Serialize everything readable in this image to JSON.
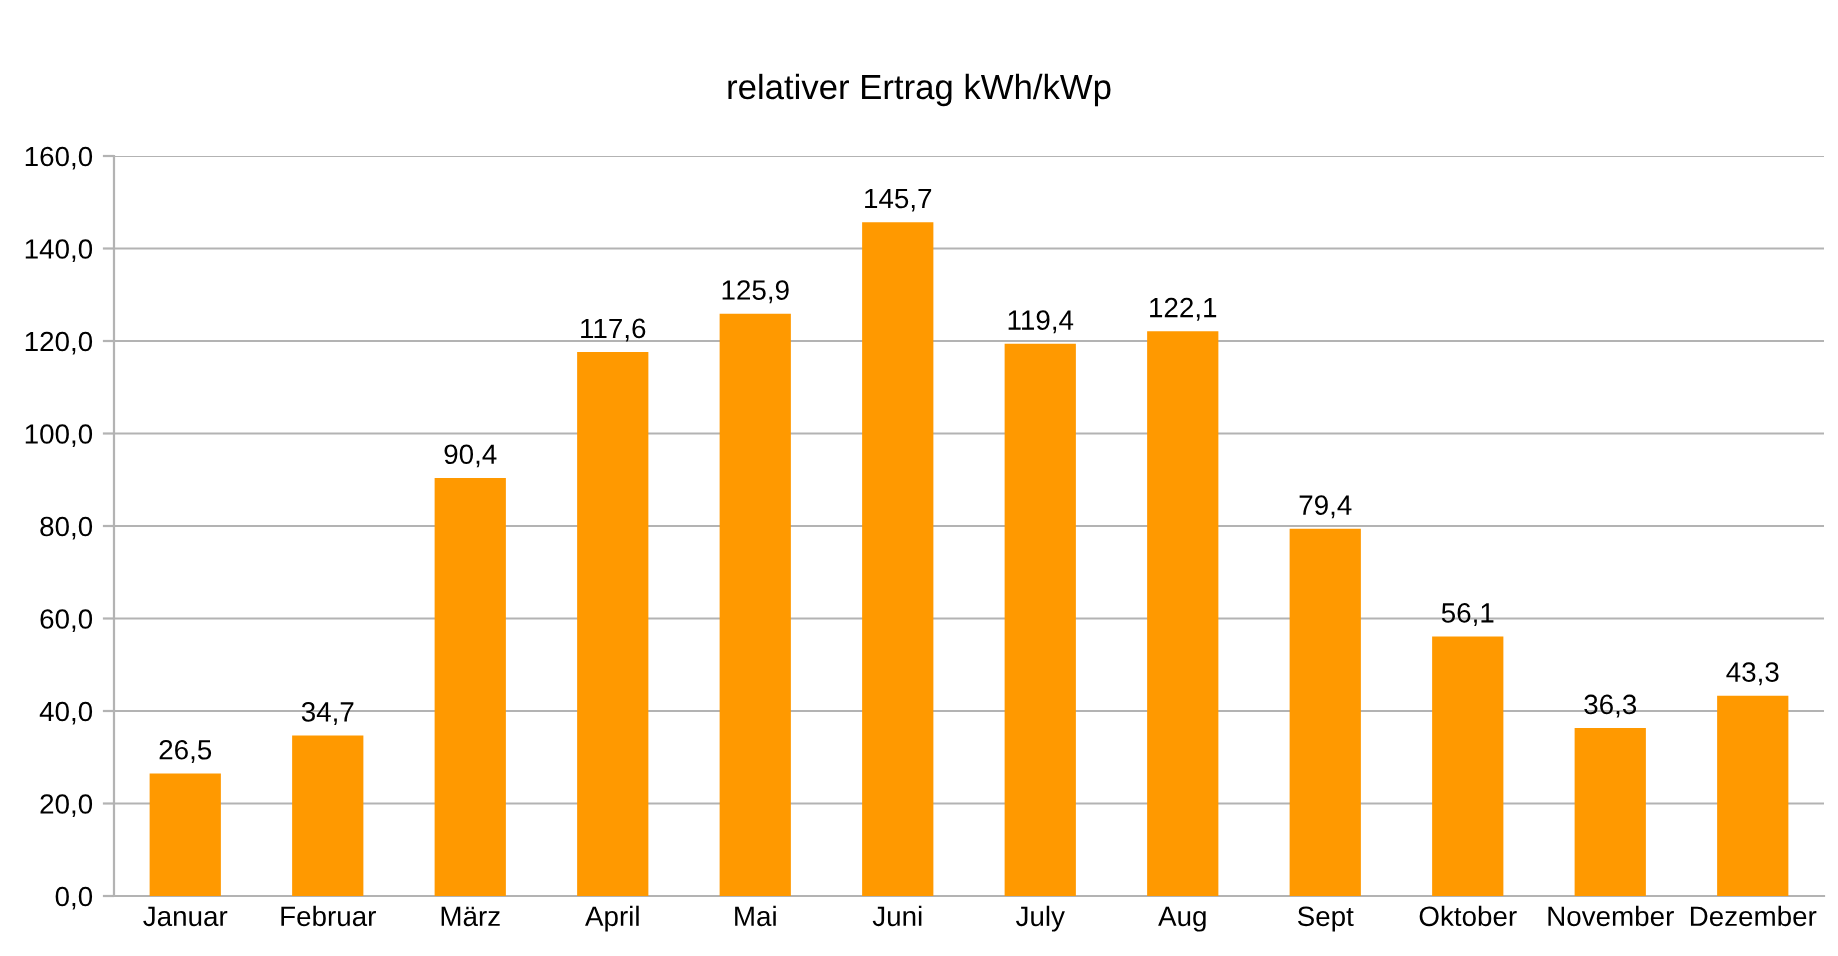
{
  "chart_data": {
    "type": "bar",
    "title": "relativer Ertrag kWh/kWp",
    "categories": [
      "Januar",
      "Februar",
      "März",
      "April",
      "Mai",
      "Juni",
      "July",
      "Aug",
      "Sept",
      "Oktober",
      "November",
      "Dezember"
    ],
    "values": [
      26.5,
      34.7,
      90.4,
      117.6,
      125.9,
      145.7,
      119.4,
      122.1,
      79.4,
      56.1,
      36.3,
      43.3
    ],
    "value_labels": [
      "26,5",
      "34,7",
      "90,4",
      "117,6",
      "125,9",
      "145,7",
      "119,4",
      "122,1",
      "79,4",
      "56,1",
      "36,3",
      "43,3"
    ],
    "color": "#ff9900",
    "ylim": [
      0,
      160
    ],
    "yticks": [
      {
        "value": 0,
        "label": "0,0"
      },
      {
        "value": 20,
        "label": "20,0"
      },
      {
        "value": 40,
        "label": "40,0"
      },
      {
        "value": 60,
        "label": "60,0"
      },
      {
        "value": 80,
        "label": "80,0"
      },
      {
        "value": 100,
        "label": "100,0"
      },
      {
        "value": 120,
        "label": "120,0"
      },
      {
        "value": 140,
        "label": "140,0"
      },
      {
        "value": 160,
        "label": "160,0"
      }
    ],
    "grid": "y"
  }
}
